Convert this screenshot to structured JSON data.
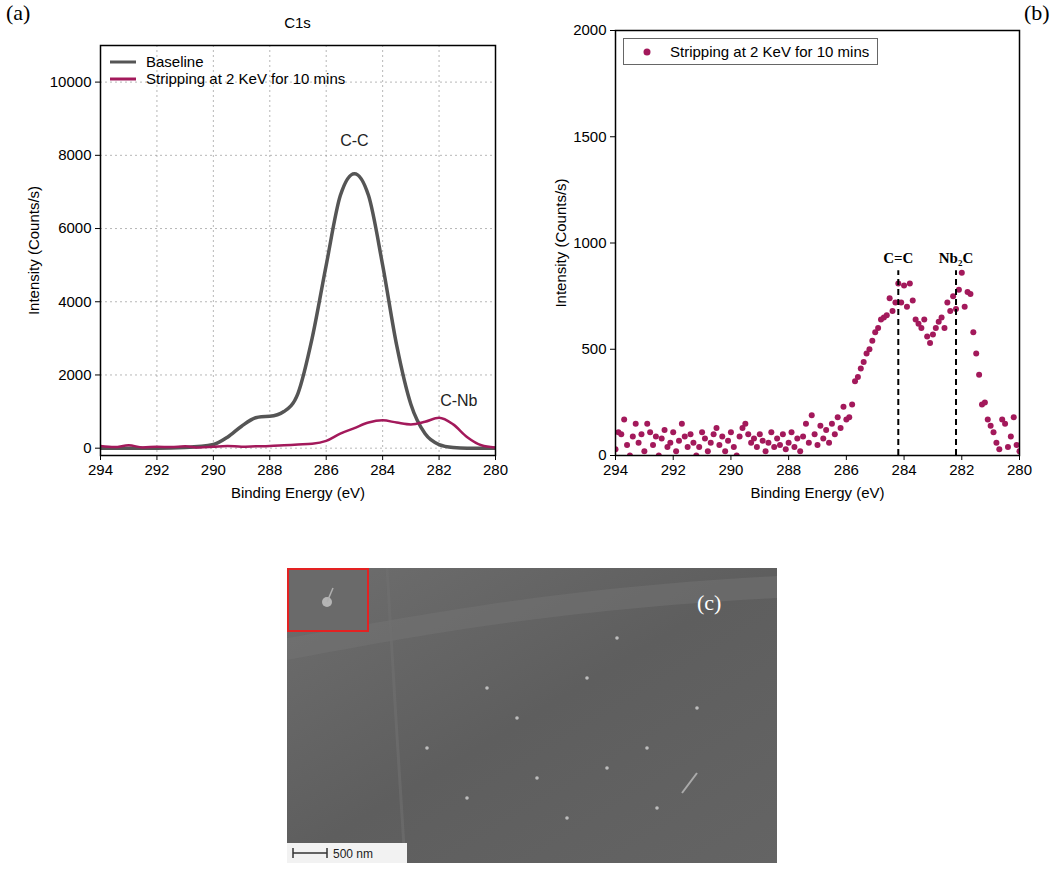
{
  "chart_data": [
    {
      "panel": "(a)",
      "type": "line",
      "title": "C1s",
      "x_label": "Binding Energy (eV)",
      "y_label": "Intensity (Counts/s)",
      "xlim": [
        294,
        280
      ],
      "xticks": [
        294,
        292,
        290,
        288,
        286,
        284,
        282,
        280
      ],
      "ylim": [
        -200,
        11000
      ],
      "yticks": [
        0,
        2000,
        4000,
        6000,
        8000,
        10000
      ],
      "grid": true,
      "legend": "upper left",
      "series": [
        {
          "name": "Baseline",
          "color": "#555555",
          "x": [
            294,
            292,
            291,
            290,
            289.5,
            289,
            288.5,
            288.3,
            288,
            287.5,
            287,
            286.5,
            286,
            285.5,
            285,
            284.5,
            284,
            283.5,
            283,
            282.5,
            282,
            281.5,
            281,
            280
          ],
          "values": [
            0,
            0,
            20,
            100,
            300,
            600,
            830,
            860,
            870,
            1000,
            1500,
            3000,
            5000,
            6900,
            7500,
            6900,
            5000,
            2800,
            1200,
            400,
            100,
            20,
            0,
            0
          ]
        },
        {
          "name": "Stripping at 2 KeV for 10 mins",
          "color": "#a3195b",
          "x": [
            294,
            293.5,
            293,
            292.5,
            292,
            291.5,
            291,
            290.5,
            290,
            289.5,
            289,
            288.5,
            288,
            287.5,
            287,
            286.5,
            286,
            285.5,
            285,
            284.5,
            284,
            283.5,
            283,
            282.5,
            282,
            281.5,
            281,
            280.5,
            280
          ],
          "values": [
            60,
            30,
            80,
            20,
            40,
            30,
            50,
            20,
            40,
            60,
            40,
            50,
            60,
            80,
            100,
            120,
            200,
            400,
            550,
            700,
            760,
            700,
            650,
            720,
            830,
            650,
            300,
            80,
            20
          ]
        }
      ],
      "annotations": [
        {
          "text": "C-C",
          "x": 285,
          "y": 8400
        },
        {
          "text": "C-Nb",
          "x": 281.3,
          "y": 1300
        }
      ]
    },
    {
      "panel": "(b)",
      "type": "scatter",
      "x_label": "Binding Energy (eV)",
      "y_label": "Intensity (Counts/s)",
      "xlim": [
        294,
        280
      ],
      "xticks": [
        294,
        292,
        290,
        288,
        286,
        284,
        282,
        280
      ],
      "ylim": [
        0,
        2000
      ],
      "yticks": [
        0,
        500,
        1000,
        1500,
        2000
      ],
      "grid": false,
      "legend": "upper left",
      "series": [
        {
          "name": "Stripping at 2 KeV for 10 mins",
          "color": "#a3195b",
          "marker": "circle",
          "x": [
            294.0,
            293.9,
            293.8,
            293.7,
            293.6,
            293.5,
            293.4,
            293.3,
            293.2,
            293.1,
            293.0,
            292.9,
            292.8,
            292.7,
            292.6,
            292.5,
            292.4,
            292.3,
            292.2,
            292.1,
            292.0,
            291.9,
            291.8,
            291.7,
            291.6,
            291.5,
            291.4,
            291.3,
            291.2,
            291.1,
            291.0,
            290.9,
            290.8,
            290.7,
            290.6,
            290.5,
            290.4,
            290.3,
            290.2,
            290.1,
            290.0,
            289.9,
            289.8,
            289.7,
            289.6,
            289.5,
            289.4,
            289.3,
            289.2,
            289.1,
            289.0,
            288.9,
            288.8,
            288.7,
            288.6,
            288.5,
            288.4,
            288.3,
            288.2,
            288.1,
            288.0,
            287.9,
            287.8,
            287.7,
            287.6,
            287.5,
            287.4,
            287.3,
            287.2,
            287.1,
            287.0,
            286.9,
            286.8,
            286.7,
            286.6,
            286.5,
            286.4,
            286.3,
            286.2,
            286.1,
            286.0,
            285.9,
            285.8,
            285.7,
            285.6,
            285.5,
            285.4,
            285.3,
            285.2,
            285.1,
            285.0,
            284.9,
            284.8,
            284.7,
            284.6,
            284.5,
            284.4,
            284.3,
            284.2,
            284.1,
            284.0,
            283.9,
            283.8,
            283.7,
            283.6,
            283.5,
            283.4,
            283.3,
            283.2,
            283.1,
            283.0,
            282.9,
            282.8,
            282.7,
            282.6,
            282.5,
            282.4,
            282.3,
            282.2,
            282.1,
            282.0,
            281.9,
            281.8,
            281.7,
            281.6,
            281.5,
            281.4,
            281.3,
            281.2,
            281.1,
            281.0,
            280.9,
            280.8,
            280.7,
            280.6,
            280.5,
            280.4,
            280.3,
            280.2,
            280.1,
            280.0
          ],
          "values": [
            30,
            110,
            100,
            170,
            50,
            0,
            90,
            150,
            60,
            100,
            20,
            150,
            110,
            50,
            90,
            0,
            80,
            120,
            40,
            60,
            110,
            20,
            70,
            150,
            90,
            40,
            100,
            60,
            0,
            40,
            110,
            80,
            20,
            60,
            100,
            130,
            50,
            90,
            20,
            70,
            110,
            40,
            0,
            90,
            130,
            150,
            100,
            60,
            80,
            40,
            100,
            70,
            20,
            60,
            110,
            40,
            80,
            50,
            100,
            30,
            60,
            110,
            40,
            80,
            20,
            90,
            150,
            60,
            190,
            100,
            50,
            140,
            80,
            120,
            60,
            150,
            100,
            180,
            130,
            230,
            170,
            180,
            240,
            350,
            370,
            410,
            440,
            480,
            500,
            540,
            580,
            600,
            640,
            650,
            660,
            740,
            680,
            720,
            810,
            720,
            800,
            700,
            810,
            730,
            640,
            620,
            600,
            640,
            560,
            530,
            570,
            600,
            630,
            650,
            600,
            720,
            680,
            750,
            690,
            780,
            860,
            700,
            770,
            760,
            580,
            480,
            380,
            240,
            250,
            170,
            140,
            110,
            60,
            30,
            170,
            150,
            40,
            90,
            180,
            50,
            20
          ]
        }
      ],
      "reference_lines": [
        {
          "label": "C=C",
          "x": 284.2,
          "y": 870
        },
        {
          "label": "Nb₂C",
          "x": 282.2,
          "y": 870
        }
      ]
    }
  ],
  "image_panel": {
    "panel": "(c)",
    "scale_bar": "500 nm"
  }
}
